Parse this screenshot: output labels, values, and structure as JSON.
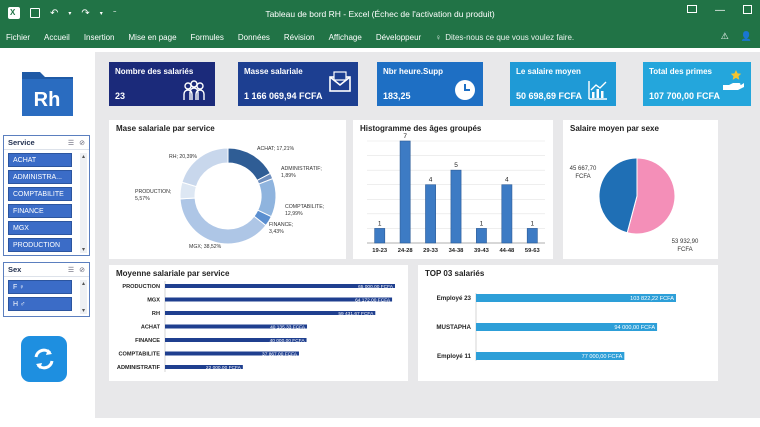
{
  "window": {
    "title": "Tableau de bord RH - Excel (Échec de l'activation du produit)"
  },
  "ribbon_tabs": [
    "Fichier",
    "Accueil",
    "Insertion",
    "Mise en page",
    "Formules",
    "Données",
    "Révision",
    "Affichage",
    "Développeur"
  ],
  "tell_me": "Dites-nous ce que vous voulez faire.",
  "logo": {
    "text": "Rh"
  },
  "slicers": {
    "service": {
      "title": "Service",
      "items": [
        "ACHAT",
        "ADMINISTRA...",
        "COMPTABILITE",
        "FINANCE",
        "MGX",
        "PRODUCTION"
      ]
    },
    "sex": {
      "title": "Sex",
      "items": [
        "F ♀",
        "H ♂"
      ]
    }
  },
  "kpis": [
    {
      "label": "Nombre des salariés",
      "value": "23",
      "color": "#1b2a7a",
      "icon": "people-icon"
    },
    {
      "label": "Masse salariale",
      "value": "1 166 069,94 FCFA",
      "color": "#1d3f91",
      "icon": "envelope-icon"
    },
    {
      "label": "Nbr heure.Supp",
      "value": "183,25",
      "color": "#1e6fc4",
      "icon": "clock-icon"
    },
    {
      "label": "Le salaire moyen",
      "value": "50 698,69 FCFA",
      "color": "#1f9ad6",
      "icon": "chart-icon"
    },
    {
      "label": "Total des primes",
      "value": "107 700,00 FCFA",
      "color": "#24a6dc",
      "icon": "hand-star-icon"
    }
  ],
  "panels": {
    "donut_title": "Mase salariale par service",
    "hist_title": "Histogramme des âges groupés",
    "pie_title": "Salaire moyen par sexe",
    "avg_title": "Moyenne salariale par service",
    "top_title": "TOP 03 salariés"
  },
  "chart_data": [
    {
      "type": "donut",
      "title": "Mase salariale par service",
      "categories": [
        "ACHAT",
        "ADMINISTRATIF",
        "COMPTABILITE",
        "FINANCE",
        "MGX",
        "PRODUCTION",
        "RH"
      ],
      "values": [
        17.21,
        1.89,
        12.99,
        3.43,
        38.52,
        5.57,
        20.39
      ],
      "labels": [
        "ACHAT; 17,21%",
        "ADMINISTRATIF; 1,89%",
        "COMPTABILITE; 12,99%",
        "FINANCE; 3,43%",
        "MGX; 38,52%",
        "PRODUCTION; 5,57%",
        "RH; 20,39%"
      ],
      "colors": [
        "#2f5d95",
        "#6e8fbf",
        "#8fb4de",
        "#5b8fd0",
        "#aec6e6",
        "#dde7f3",
        "#c8d7ec"
      ]
    },
    {
      "type": "bar",
      "title": "Histogramme des âges groupés",
      "categories": [
        "19-23",
        "24-28",
        "29-33",
        "34-38",
        "39-43",
        "44-48",
        "59-63"
      ],
      "values": [
        1,
        7,
        4,
        5,
        1,
        4,
        1
      ],
      "ylim": [
        0,
        7
      ],
      "grid": true
    },
    {
      "type": "pie",
      "title": "Salaire moyen par sexe",
      "categories": [
        "H",
        "F"
      ],
      "values": [
        45667.7,
        53932.9
      ],
      "labels": [
        "45 667,70 FCFA",
        "53 932,90 FCFA"
      ],
      "colors": [
        "#1f6fb5",
        "#f48fb8"
      ]
    },
    {
      "type": "bar",
      "orientation": "horizontal",
      "title": "Moyenne salariale par service",
      "categories": [
        "PRODUCTION",
        "MGX",
        "RH",
        "ACHAT",
        "FINANCE",
        "COMPTABILITE",
        "ADMINISTRATIF"
      ],
      "values": [
        65000.0,
        64172.0,
        59431.67,
        40135.33,
        40000.0,
        37867.0,
        22000.0
      ],
      "labels": [
        "65 000,00 FCFA",
        "64 172,00 FCFA",
        "59 431,67 FCFA",
        "40 135,33 FCFA",
        "40 000,00 FCFA",
        "37 867,00 FCFA",
        "22 000,00 FCFA"
      ]
    },
    {
      "type": "bar",
      "orientation": "horizontal",
      "title": "TOP 03 salariés",
      "categories": [
        "Employé 23",
        "MUSTAPHA",
        "Employé 11"
      ],
      "values": [
        103822.22,
        94000.0,
        77000.0
      ],
      "labels": [
        "103 822,22 FCFA",
        "94 000,00 FCFA",
        "77 000,00 FCFA"
      ]
    }
  ]
}
